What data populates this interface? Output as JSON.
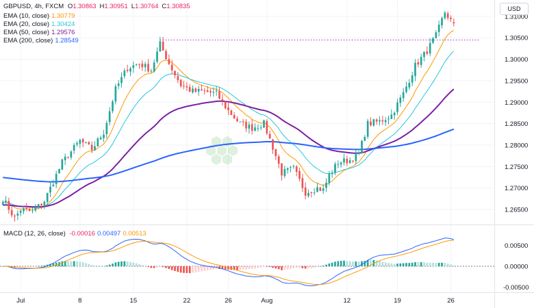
{
  "header": {
    "symbol_line": "GBPUSD, 4h, FXCM",
    "ohlc": [
      {
        "k": "O",
        "v": "1.30863"
      },
      {
        "k": "H",
        "v": "1.30951"
      },
      {
        "k": "L",
        "v": "1.30764"
      },
      {
        "k": "C",
        "v": "1.30835"
      }
    ],
    "currency_button": "USD"
  },
  "indicators": [
    {
      "label": "EMA (10, close)",
      "value": "1.30779",
      "color": "#ff9800"
    },
    {
      "label": "EMA (20, close)",
      "value": "1.30424",
      "color": "#26c6da"
    },
    {
      "label": "EMA (50, close)",
      "value": "1.29576",
      "color": "#7b1fa2"
    },
    {
      "label": "EMA (200, close)",
      "value": "1.28549",
      "color": "#2962ff"
    }
  ],
  "macd": {
    "label": "MACD (12, 26, close)",
    "values": [
      {
        "v": "-0.00016",
        "color": "#e91e63"
      },
      {
        "v": "0.00497",
        "color": "#2962ff"
      },
      {
        "v": "0.00513",
        "color": "#ff9800"
      }
    ]
  },
  "chart_data": {
    "type": "candlestick",
    "price_axis": {
      "range": [
        1.2615,
        1.3138
      ],
      "ticks": [
        "1.31000",
        "1.30500",
        "1.30000",
        "1.29500",
        "1.29000",
        "1.28500",
        "1.28000",
        "1.27500",
        "1.27000",
        "1.26500"
      ]
    },
    "macd_axis": {
      "range": [
        -0.0062,
        0.0072
      ],
      "ticks": [
        "0.00500",
        "0.00000",
        "-0.00500"
      ]
    },
    "x_ticks": [
      {
        "label": "Jul",
        "bar": 6
      },
      {
        "label": "8",
        "bar": 26
      },
      {
        "label": "15",
        "bar": 44
      },
      {
        "label": "22",
        "bar": 62
      },
      {
        "label": "26",
        "bar": 76
      },
      {
        "label": "Aug",
        "bar": 89
      },
      {
        "label": "12",
        "bar": 116
      },
      {
        "label": "19",
        "bar": 133
      },
      {
        "label": "26",
        "bar": 151
      }
    ],
    "resistance_level": 1.3045,
    "anchors": [
      [
        0,
        1.2675
      ],
      [
        4,
        1.263
      ],
      [
        6,
        1.265
      ],
      [
        10,
        1.2645
      ],
      [
        14,
        1.267
      ],
      [
        20,
        1.276
      ],
      [
        26,
        1.281
      ],
      [
        30,
        1.279
      ],
      [
        34,
        1.283
      ],
      [
        38,
        1.293
      ],
      [
        42,
        1.298
      ],
      [
        46,
        1.299
      ],
      [
        50,
        1.2975
      ],
      [
        53,
        1.3035
      ],
      [
        56,
        1.299
      ],
      [
        60,
        1.294
      ],
      [
        64,
        1.2925
      ],
      [
        68,
        1.2925
      ],
      [
        72,
        1.292
      ],
      [
        76,
        1.288
      ],
      [
        80,
        1.285
      ],
      [
        84,
        1.284
      ],
      [
        88,
        1.285
      ],
      [
        91,
        1.2795
      ],
      [
        94,
        1.2735
      ],
      [
        98,
        1.2745
      ],
      [
        102,
        1.269
      ],
      [
        106,
        1.27
      ],
      [
        108,
        1.2695
      ],
      [
        110,
        1.273
      ],
      [
        113,
        1.276
      ],
      [
        117,
        1.2765
      ],
      [
        120,
        1.278
      ],
      [
        123,
        1.285
      ],
      [
        127,
        1.2855
      ],
      [
        131,
        1.287
      ],
      [
        135,
        1.292
      ],
      [
        139,
        1.2985
      ],
      [
        143,
        1.302
      ],
      [
        146,
        1.3055
      ],
      [
        149,
        1.311
      ],
      [
        151,
        1.309
      ],
      [
        152,
        1.3083
      ]
    ],
    "series": [
      {
        "name": "EMA (10, close)",
        "period": 10,
        "color": "#ff9800"
      },
      {
        "name": "EMA (20, close)",
        "period": 20,
        "color": "#26c6da"
      },
      {
        "name": "EMA (50, close)",
        "period": 50,
        "color": "#7b1fa2"
      },
      {
        "name": "EMA (200, close)",
        "period": 200,
        "color": "#2962ff"
      }
    ],
    "bar_count": 153
  }
}
